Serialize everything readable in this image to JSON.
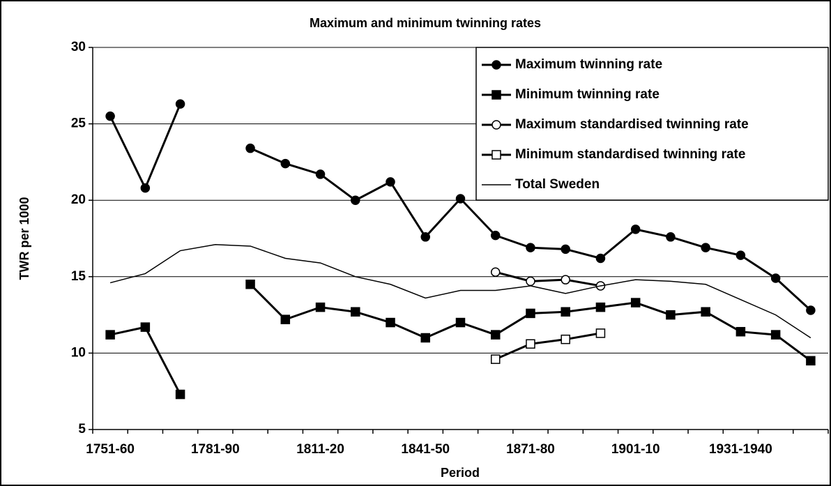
{
  "chart_data": {
    "type": "line",
    "title": "Maximum and minimum twinning rates",
    "x_label": "Period",
    "y_label": "TWR per 1000",
    "categories": [
      "1751-60",
      null,
      null,
      "1781-90",
      null,
      null,
      "1811-20",
      null,
      null,
      "1841-50",
      null,
      null,
      "1871-80",
      null,
      null,
      "1901-10",
      null,
      null,
      "1931-1940",
      null,
      null
    ],
    "ylim": [
      5,
      30
    ],
    "yticks": [
      5,
      10,
      15,
      20,
      25,
      30
    ],
    "grid": true,
    "legend": "upper right",
    "series": [
      {
        "name": "Maximum twinning rate",
        "color": "#000000",
        "marker": "circle",
        "marker_fill": "#000000",
        "line_width": 3,
        "values": [
          25.5,
          20.8,
          26.3,
          null,
          23.4,
          22.4,
          21.7,
          20.0,
          21.2,
          17.6,
          20.1,
          17.7,
          16.9,
          16.8,
          16.2,
          18.1,
          17.6,
          16.9,
          16.4,
          14.9,
          12.8
        ]
      },
      {
        "name": "Minimum twinning rate",
        "color": "#000000",
        "marker": "square",
        "marker_fill": "#000000",
        "line_width": 3,
        "values": [
          11.2,
          11.7,
          7.3,
          null,
          14.5,
          12.2,
          13.0,
          12.7,
          12.0,
          11.0,
          12.0,
          11.2,
          12.6,
          12.7,
          13.0,
          13.3,
          12.5,
          12.7,
          11.4,
          11.2,
          9.5
        ]
      },
      {
        "name": "Maximum standardised twinning rate",
        "color": "#000000",
        "marker": "circle",
        "marker_fill": "#ffffff",
        "line_width": 3,
        "values": [
          null,
          null,
          null,
          null,
          null,
          null,
          null,
          null,
          null,
          null,
          null,
          15.3,
          14.7,
          14.8,
          14.4,
          null,
          null,
          null,
          null,
          null,
          null
        ]
      },
      {
        "name": "Minimum standardised twinning rate",
        "color": "#000000",
        "marker": "square",
        "marker_fill": "#ffffff",
        "line_width": 3,
        "values": [
          null,
          null,
          null,
          null,
          null,
          null,
          null,
          null,
          null,
          null,
          null,
          9.6,
          10.6,
          10.9,
          11.3,
          null,
          null,
          null,
          null,
          null,
          null
        ]
      },
      {
        "name": "Total Sweden",
        "color": "#000000",
        "marker": "none",
        "marker_fill": "none",
        "line_width": 1.5,
        "values": [
          14.6,
          15.2,
          16.7,
          17.1,
          17.0,
          16.2,
          15.9,
          15.0,
          14.5,
          13.6,
          14.1,
          14.1,
          14.4,
          13.9,
          14.4,
          14.8,
          14.7,
          14.5,
          13.5,
          12.5,
          11.0
        ]
      }
    ]
  }
}
